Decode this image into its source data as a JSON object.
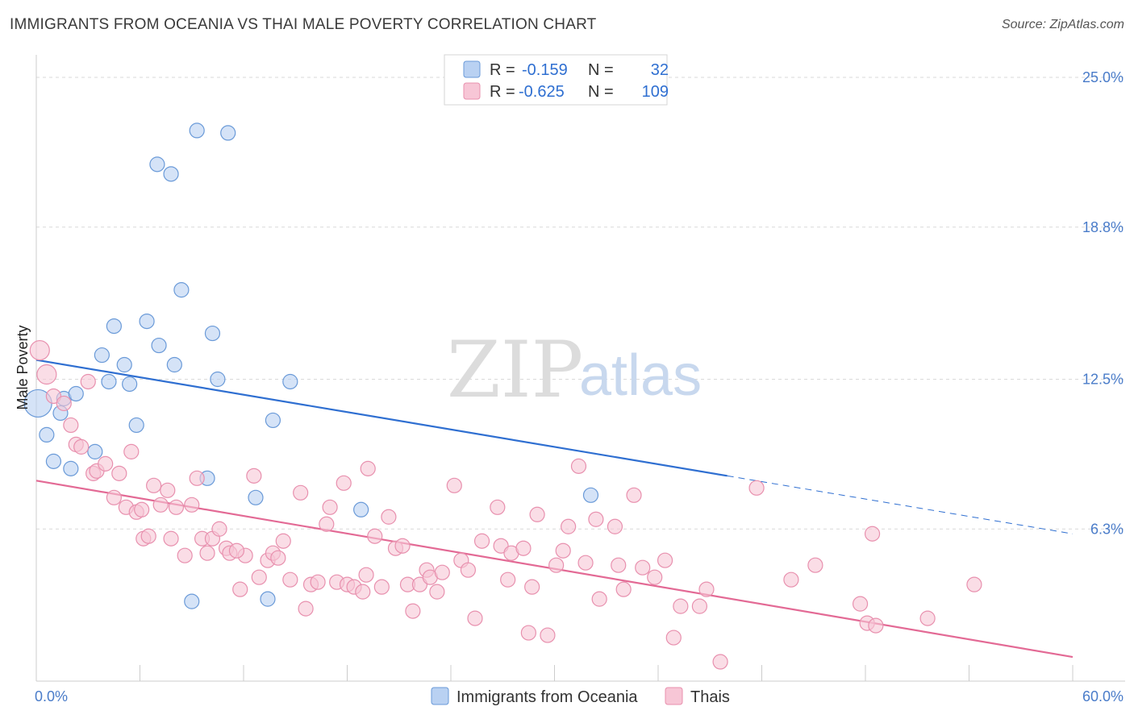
{
  "title": "IMMIGRANTS FROM OCEANIA VS THAI MALE POVERTY CORRELATION CHART",
  "source": "Source: ZipAtlas.com",
  "watermark": {
    "zip": "ZIP",
    "atlas": "atlas"
  },
  "colors": {
    "blue_fill": "#b9d1f2",
    "blue_stroke": "#6a9ad8",
    "blue_line": "#2f6fd1",
    "pink_fill": "#f7c6d6",
    "pink_stroke": "#e890ae",
    "pink_line": "#e36a95",
    "grid": "#d9d9d9",
    "tick_label": "#4a7cc9"
  },
  "legend": {
    "rows": [
      {
        "r_label": "R =",
        "r_value": "-0.159",
        "n_label": "N =",
        "n_value": "32"
      },
      {
        "r_label": "R =",
        "r_value": "-0.625",
        "n_label": "N =",
        "n_value": "109"
      }
    ]
  },
  "bottom_legend": {
    "items": [
      {
        "label": "Immigrants from Oceania"
      },
      {
        "label": "Thais"
      }
    ]
  },
  "chart_data": {
    "type": "scatter",
    "xlabel": "",
    "ylabel": "Male Poverty",
    "xlim": [
      0,
      60
    ],
    "ylim": [
      0,
      25
    ],
    "x_tick_labels": [
      "0.0%",
      "60.0%"
    ],
    "y_ticks": [
      6.3,
      12.5,
      18.8,
      25.0
    ],
    "y_tick_labels": [
      "6.3%",
      "12.5%",
      "18.8%",
      "25.0%"
    ],
    "grid": true,
    "legend_position": "top-center",
    "series": [
      {
        "name": "Immigrants from Oceania",
        "color": "#b9d1f2",
        "points": [
          [
            0.1,
            11.5
          ],
          [
            0.6,
            10.2
          ],
          [
            1.0,
            9.1
          ],
          [
            1.4,
            11.1
          ],
          [
            1.6,
            11.7
          ],
          [
            2.0,
            8.8
          ],
          [
            2.3,
            11.9
          ],
          [
            3.4,
            9.5
          ],
          [
            3.8,
            13.5
          ],
          [
            4.2,
            12.4
          ],
          [
            4.5,
            14.7
          ],
          [
            5.1,
            13.1
          ],
          [
            5.4,
            12.3
          ],
          [
            5.8,
            10.6
          ],
          [
            6.4,
            14.9
          ],
          [
            7.0,
            21.4
          ],
          [
            7.1,
            13.9
          ],
          [
            7.8,
            21.0
          ],
          [
            8.0,
            13.1
          ],
          [
            8.4,
            16.2
          ],
          [
            9.0,
            3.3
          ],
          [
            9.3,
            22.8
          ],
          [
            9.9,
            8.4
          ],
          [
            10.2,
            14.4
          ],
          [
            10.5,
            12.5
          ],
          [
            11.1,
            22.7
          ],
          [
            12.7,
            7.6
          ],
          [
            13.4,
            3.4
          ],
          [
            13.7,
            10.8
          ],
          [
            14.7,
            12.4
          ],
          [
            18.8,
            7.1
          ],
          [
            32.1,
            7.7
          ]
        ],
        "trend": {
          "x": [
            0,
            40,
            60
          ],
          "y": [
            13.3,
            8.5,
            6.1
          ],
          "solid_until": 40
        }
      },
      {
        "name": "Thais",
        "color": "#f7c6d6",
        "points": [
          [
            0.2,
            13.7
          ],
          [
            0.6,
            12.7
          ],
          [
            1.0,
            11.8
          ],
          [
            1.6,
            11.5
          ],
          [
            2.0,
            10.6
          ],
          [
            2.3,
            9.8
          ],
          [
            2.6,
            9.7
          ],
          [
            3.0,
            12.4
          ],
          [
            3.3,
            8.6
          ],
          [
            3.5,
            8.7
          ],
          [
            4.0,
            9.0
          ],
          [
            4.5,
            7.6
          ],
          [
            4.8,
            8.6
          ],
          [
            5.2,
            7.2
          ],
          [
            5.5,
            9.5
          ],
          [
            5.8,
            7.0
          ],
          [
            6.2,
            5.9
          ],
          [
            6.5,
            6.0
          ],
          [
            6.8,
            8.1
          ],
          [
            7.2,
            7.3
          ],
          [
            7.6,
            7.9
          ],
          [
            7.8,
            5.9
          ],
          [
            8.1,
            7.2
          ],
          [
            8.6,
            5.2
          ],
          [
            9.0,
            7.3
          ],
          [
            9.3,
            8.4
          ],
          [
            9.6,
            5.9
          ],
          [
            9.9,
            5.3
          ],
          [
            10.2,
            5.9
          ],
          [
            10.6,
            6.3
          ],
          [
            11.0,
            5.5
          ],
          [
            11.2,
            5.3
          ],
          [
            11.8,
            3.8
          ],
          [
            12.1,
            5.2
          ],
          [
            12.6,
            8.5
          ],
          [
            12.9,
            4.3
          ],
          [
            13.4,
            5.0
          ],
          [
            13.7,
            5.3
          ],
          [
            14.0,
            5.1
          ],
          [
            14.3,
            5.8
          ],
          [
            14.7,
            4.2
          ],
          [
            15.3,
            7.8
          ],
          [
            15.6,
            3.0
          ],
          [
            15.9,
            4.0
          ],
          [
            16.3,
            4.1
          ],
          [
            16.8,
            6.5
          ],
          [
            17.0,
            7.2
          ],
          [
            17.4,
            4.1
          ],
          [
            17.8,
            8.2
          ],
          [
            18.0,
            4.0
          ],
          [
            18.4,
            3.9
          ],
          [
            18.9,
            3.7
          ],
          [
            19.2,
            8.8
          ],
          [
            19.6,
            6.0
          ],
          [
            20.0,
            3.9
          ],
          [
            20.4,
            6.8
          ],
          [
            20.8,
            5.5
          ],
          [
            21.2,
            5.6
          ],
          [
            21.5,
            4.0
          ],
          [
            21.8,
            2.9
          ],
          [
            22.2,
            4.0
          ],
          [
            22.6,
            4.6
          ],
          [
            22.8,
            4.3
          ],
          [
            23.2,
            3.7
          ],
          [
            23.5,
            4.5
          ],
          [
            24.2,
            8.1
          ],
          [
            24.6,
            5.0
          ],
          [
            25.0,
            4.6
          ],
          [
            25.4,
            2.6
          ],
          [
            25.8,
            5.8
          ],
          [
            26.7,
            7.2
          ],
          [
            26.9,
            5.6
          ],
          [
            27.3,
            4.2
          ],
          [
            27.5,
            5.3
          ],
          [
            28.5,
            2.0
          ],
          [
            28.7,
            3.9
          ],
          [
            29.0,
            6.9
          ],
          [
            29.6,
            1.9
          ],
          [
            30.1,
            4.8
          ],
          [
            30.5,
            5.4
          ],
          [
            30.8,
            6.4
          ],
          [
            31.4,
            8.9
          ],
          [
            31.8,
            4.9
          ],
          [
            32.4,
            6.7
          ],
          [
            32.6,
            3.4
          ],
          [
            33.5,
            6.4
          ],
          [
            33.7,
            4.8
          ],
          [
            34.0,
            3.8
          ],
          [
            34.6,
            7.7
          ],
          [
            35.1,
            4.7
          ],
          [
            35.8,
            4.3
          ],
          [
            36.4,
            5.0
          ],
          [
            36.9,
            1.8
          ],
          [
            37.3,
            3.1
          ],
          [
            38.4,
            3.1
          ],
          [
            38.8,
            3.8
          ],
          [
            39.6,
            0.8
          ],
          [
            41.7,
            8.0
          ],
          [
            43.7,
            4.2
          ],
          [
            45.1,
            4.8
          ],
          [
            47.7,
            3.2
          ],
          [
            48.1,
            2.4
          ],
          [
            48.4,
            6.1
          ],
          [
            48.6,
            2.3
          ],
          [
            51.6,
            2.6
          ],
          [
            54.3,
            4.0
          ],
          [
            28.2,
            5.5
          ],
          [
            19.1,
            4.4
          ],
          [
            11.6,
            5.4
          ],
          [
            6.1,
            7.1
          ]
        ],
        "trend": {
          "x": [
            0,
            60
          ],
          "y": [
            8.3,
            1.0
          ],
          "solid_until": 60
        }
      }
    ]
  }
}
